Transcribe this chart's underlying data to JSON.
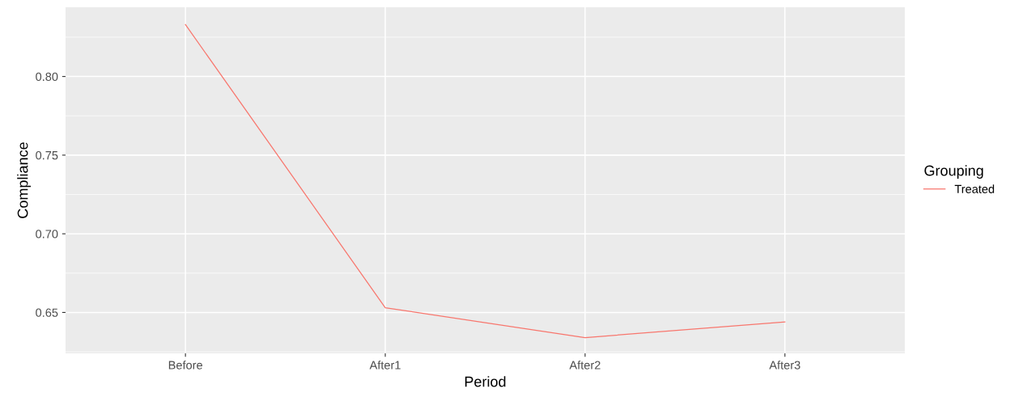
{
  "chart_data": {
    "type": "line",
    "xlabel": "Period",
    "ylabel": "Compliance",
    "legend_title": "Grouping",
    "categories": [
      "Before",
      "After1",
      "After2",
      "After3"
    ],
    "series": [
      {
        "name": "Treated",
        "color": "#f8766d",
        "values": [
          0.833,
          0.653,
          0.634,
          0.644
        ]
      }
    ],
    "ylim": [
      0.624,
      0.844
    ],
    "yticks": [
      0.65,
      {
        "value": 0.7,
        "label": "0.70"
      },
      0.75,
      {
        "value": 0.8,
        "label": "0.80"
      }
    ],
    "grid": true,
    "legend": "right"
  }
}
